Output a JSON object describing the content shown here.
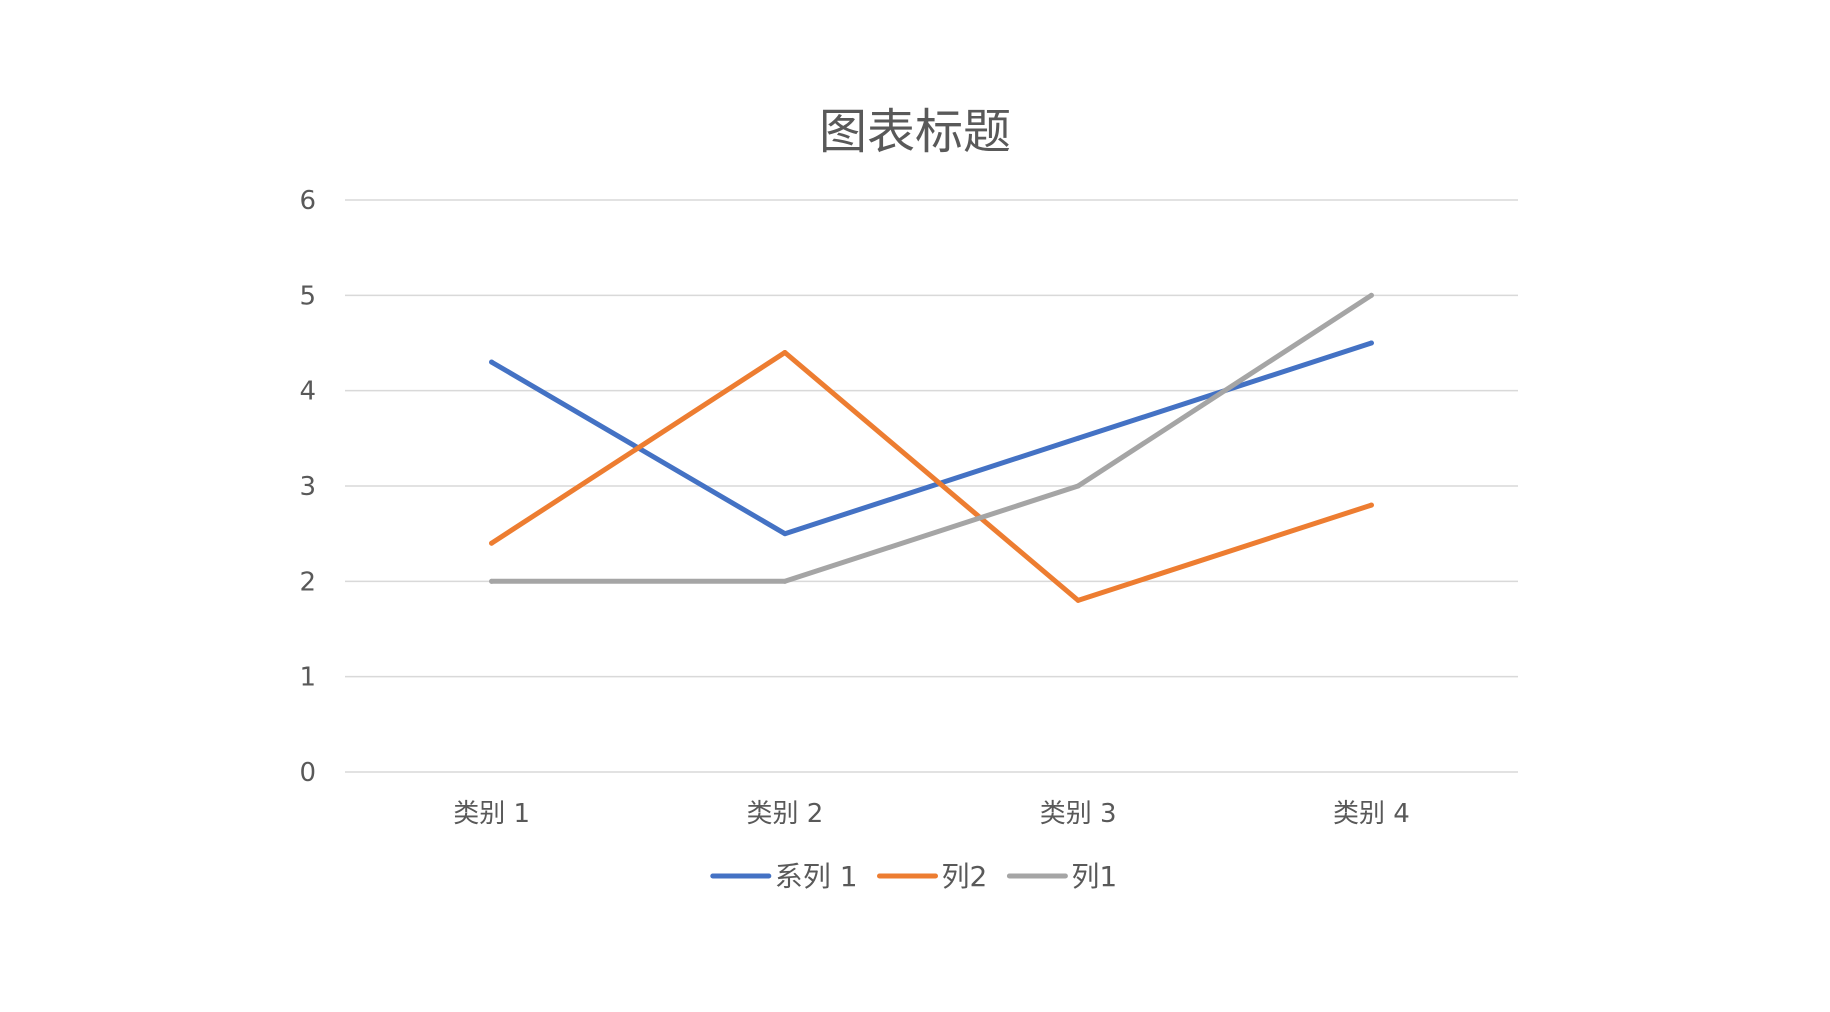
{
  "chart_data": {
    "type": "line",
    "title": "图表标题",
    "categories": [
      "类别 1",
      "类别 2",
      "类别 3",
      "类别 4"
    ],
    "series": [
      {
        "name": "系列 1",
        "values": [
          4.3,
          2.5,
          3.5,
          4.5
        ],
        "color": "#4472c4"
      },
      {
        "name": "列2",
        "values": [
          2.4,
          4.4,
          1.8,
          2.8
        ],
        "color": "#ed7d31"
      },
      {
        "name": "列1",
        "values": [
          2,
          2,
          3,
          5
        ],
        "color": "#a5a5a5"
      }
    ],
    "ylim": [
      0,
      6
    ],
    "yticks": [
      "0",
      "1",
      "2",
      "3",
      "4",
      "5",
      "6"
    ],
    "grid": true,
    "legend": "bottom"
  }
}
